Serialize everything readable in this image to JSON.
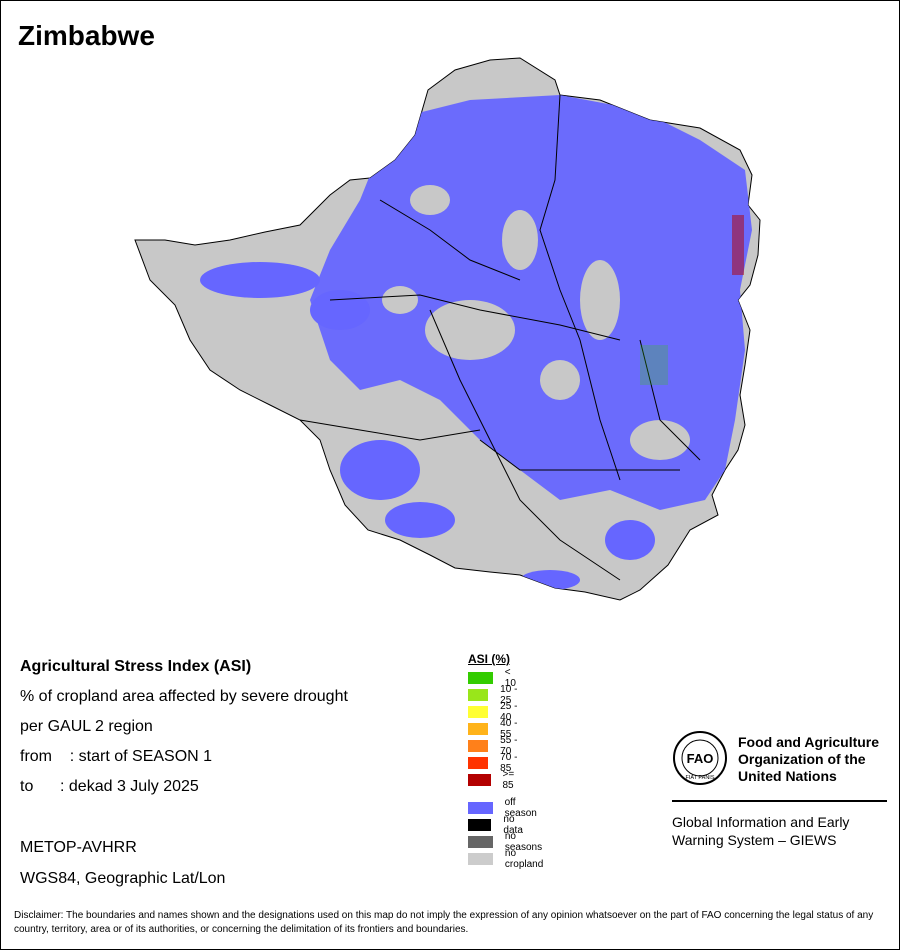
{
  "map": {
    "country_name": "Zimbabwe"
  },
  "info": {
    "title": "Agricultural Stress Index (ASI)",
    "line1": "% of cropland area affected by severe drought",
    "line2": "per GAUL 2 region",
    "from_line": "from    : start of SEASON 1",
    "to_line": "to      : dekad 3 July 2025",
    "sensor": "METOP-AVHRR",
    "projection": "WGS84, Geographic Lat/Lon"
  },
  "legend": {
    "title": "ASI (%)",
    "classes": [
      {
        "label": "< 10",
        "color": "#33cc00"
      },
      {
        "label": "10 - 25",
        "color": "#99e61a"
      },
      {
        "label": "25 - 40",
        "color": "#ffff33"
      },
      {
        "label": "40 - 55",
        "color": "#ffb31a"
      },
      {
        "label": "55 - 70",
        "color": "#ff801a"
      },
      {
        "label": "70 - 85",
        "color": "#ff3300"
      },
      {
        "label": ">= 85",
        "color": "#b30000"
      },
      {
        "label": "off season",
        "color": "#6666ff"
      },
      {
        "label": "no data",
        "color": "#000000"
      },
      {
        "label": "no seasons",
        "color": "#666666"
      },
      {
        "label": "no cropland",
        "color": "#cccccc"
      }
    ]
  },
  "colors": {
    "background": "#ffffff",
    "country_fill": "#c8c8c8",
    "off_season": "#6666ff",
    "boundary": "#000000"
  },
  "fao": {
    "name_line1": "Food and Agriculture",
    "name_line2": "Organization of the",
    "name_line3": "United Nations",
    "logo_letters": "FAO",
    "logo_motto": "FIAT PANIS",
    "giews_line1": "Global Information and Early",
    "giews_line2": "Warning System – GIEWS"
  },
  "disclaimer": "Disclaimer: The boundaries and names shown and the designations used on this map do not imply the expression of any opinion whatsoever on the part of FAO concerning the legal status of any country, territory, area or of its authorities, or concerning the delimitation of its frontiers and boundaries."
}
